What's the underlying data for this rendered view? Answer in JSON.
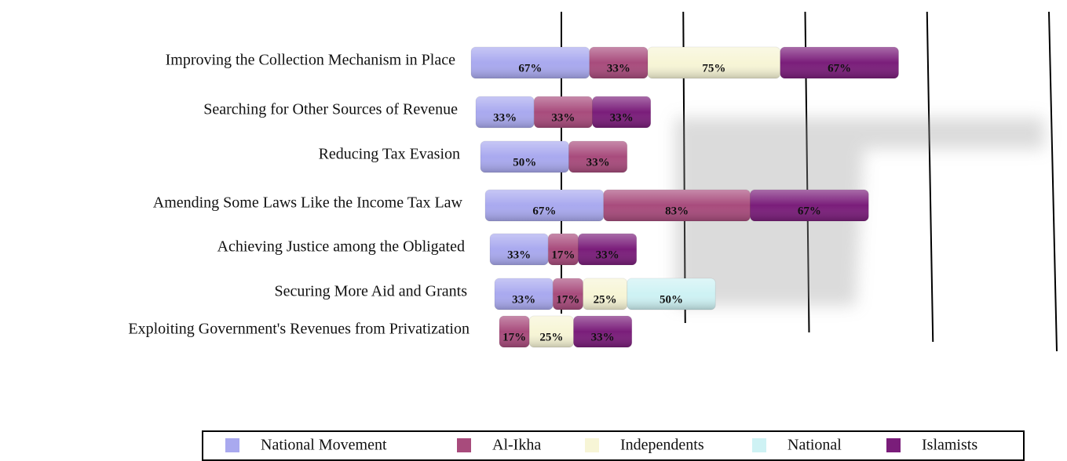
{
  "chart_data": {
    "type": "bar",
    "orientation": "horizontal",
    "stacked": true,
    "categories": [
      "Improving the Collection Mechanism in Place",
      "Searching for Other Sources of  Revenue",
      "Reducing Tax Evasion",
      "Amending Some Laws Like the Income Tax Law",
      "Achieving Justice among the Obligated",
      "Securing More Aid and Grants",
      "Exploiting Government's Revenues from Privatization"
    ],
    "series": [
      {
        "name": "National Movement",
        "color": "#a9a9ef",
        "values": [
          67,
          33,
          50,
          67,
          33,
          33,
          null
        ],
        "value_labels": [
          "67%",
          "33%",
          "50%",
          "67%",
          "33%",
          "33%",
          null
        ]
      },
      {
        "name": "Al-Ikha",
        "color": "#a84b7c",
        "values": [
          33,
          33,
          33,
          83,
          17,
          17,
          17
        ],
        "value_labels": [
          "33%",
          "33%",
          "33%",
          "83%",
          "17%",
          "17%",
          "17%"
        ]
      },
      {
        "name": "Independents",
        "color": "#f7f5d6",
        "values": [
          75,
          null,
          null,
          null,
          null,
          25,
          25
        ],
        "value_labels": [
          "75%",
          null,
          null,
          null,
          null,
          "25%",
          "25%"
        ]
      },
      {
        "name": "National",
        "color": "#cef2f4",
        "values": [
          null,
          null,
          null,
          null,
          null,
          50,
          null
        ],
        "value_labels": [
          null,
          null,
          null,
          null,
          null,
          "50%",
          null
        ]
      },
      {
        "name": "Islamists",
        "color": "#7a1d7a",
        "values": [
          67,
          33,
          null,
          67,
          33,
          null,
          33
        ],
        "value_labels": [
          "67%",
          "33%",
          null,
          "67%",
          "33%",
          null,
          "33%"
        ]
      }
    ],
    "xlim": [
      0,
      250
    ],
    "xticks": [
      0,
      60,
      120,
      180,
      240
    ],
    "grid": true,
    "legend": "bottom"
  }
}
